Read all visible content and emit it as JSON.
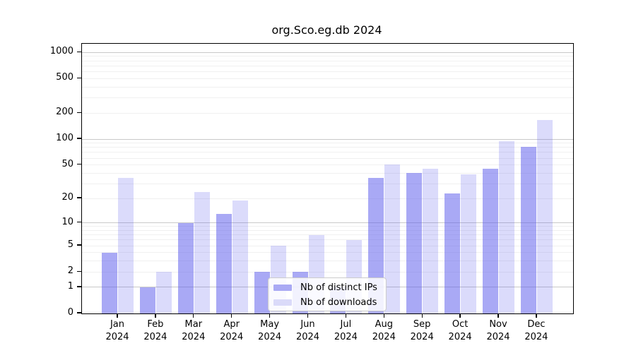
{
  "figure": {
    "background": "#ffffff",
    "text_color": "#000000"
  },
  "chart_data": {
    "type": "bar",
    "title": "org.Sco.eg.db 2024",
    "xlabel": "",
    "ylabel": "",
    "categories": [
      "Jan 2024",
      "Feb 2024",
      "Mar 2024",
      "Apr 2024",
      "May 2024",
      "Jun 2024",
      "Jul 2024",
      "Aug 2024",
      "Sep 2024",
      "Oct 2024",
      "Nov 2024",
      "Dec 2024"
    ],
    "series": [
      {
        "name": "Nb of distinct IPs",
        "color": "#a9a9f4",
        "fill": "rgba(90,90,235,0.52)",
        "values": [
          4,
          1,
          10,
          13,
          2,
          2,
          1,
          35,
          40,
          23,
          45,
          82
        ]
      },
      {
        "name": "Nb of downloads",
        "color": "#dadaf9",
        "fill": "rgba(90,90,235,0.22)",
        "values": [
          35,
          2,
          24,
          19,
          5,
          7,
          6,
          51,
          45,
          39,
          95,
          165
        ]
      }
    ],
    "yscale": "log1p",
    "ylim": [
      0,
      1000
    ],
    "y_ticks": [
      0,
      1,
      2,
      5,
      10,
      20,
      50,
      100,
      200,
      500,
      1000
    ],
    "y_major_gridlines": [
      1,
      10,
      100,
      1000
    ],
    "grid": true,
    "legend_position": "inside lower center",
    "colors": {
      "major_gridline": "#c9c9c9",
      "minor_gridline": "#f0f0f0",
      "spine": "#000000"
    }
  }
}
